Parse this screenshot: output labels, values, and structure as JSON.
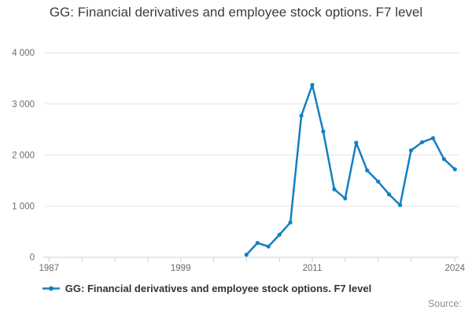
{
  "header": {
    "title": "GG: Financial derivatives and employee stock options. F7 level"
  },
  "legend": {
    "label": "GG: Financial derivatives and employee stock options. F7 level",
    "marker": "line-with-dot"
  },
  "footer": {
    "source_label": "Source:"
  },
  "colors": {
    "line": "#1480c0",
    "gridline": "#e4e4e4",
    "axis": "#c6d3e0",
    "axis_text": "#6b6b6b",
    "title_text": "#3c3c3c",
    "legend_text": "#333333",
    "source_text": "#909090",
    "background": "#ffffff"
  },
  "chart_data": {
    "type": "line",
    "title": "GG: Financial derivatives and employee stock options. F7 level",
    "xlabel": "",
    "ylabel": "",
    "xlim": [
      1987,
      2024
    ],
    "ylim": [
      0,
      4000
    ],
    "grid": true,
    "legend_position": "bottom",
    "marker": "circle",
    "y_ticks": [
      0,
      1000,
      2000,
      3000,
      4000
    ],
    "y_tick_labels": [
      "0",
      "1 000",
      "2 000",
      "3 000",
      "4 000"
    ],
    "x_ticks": [
      1987,
      1990,
      1993,
      1996,
      1999,
      2002,
      2005,
      2008,
      2011,
      2014,
      2017,
      2020,
      2024
    ],
    "x_labeled_ticks": [
      1987,
      1999,
      2011,
      2024
    ],
    "series": [
      {
        "name": "GG: Financial derivatives and employee stock options. F7 level",
        "x": [
          2005,
          2006,
          2007,
          2008,
          2009,
          2010,
          2011,
          2012,
          2013,
          2014,
          2015,
          2016,
          2017,
          2018,
          2019,
          2020,
          2021,
          2022,
          2023,
          2024
        ],
        "values": [
          50,
          280,
          210,
          440,
          680,
          2770,
          3370,
          2460,
          1330,
          1150,
          2240,
          1700,
          1480,
          1230,
          1020,
          2090,
          2250,
          2330,
          1920,
          1720
        ]
      }
    ]
  }
}
